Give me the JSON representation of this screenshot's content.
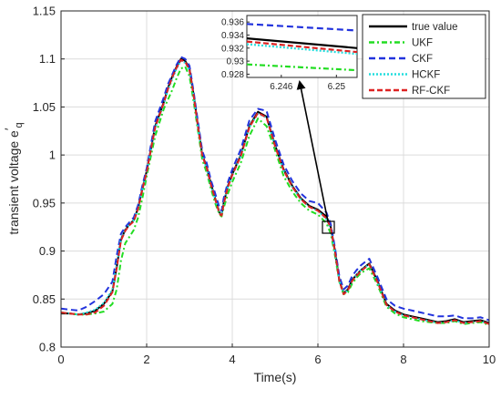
{
  "chart_data": {
    "type": "line",
    "xlabel": "Time(s)",
    "ylabel": "transient voltage e",
    "ylabel_prime": "′",
    "ylabel_sub": "q",
    "xlim": [
      0,
      10
    ],
    "ylim": [
      0.8,
      1.15
    ],
    "x_ticks": [
      "0",
      "2",
      "4",
      "6",
      "8",
      "10"
    ],
    "y_ticks": [
      "0.8",
      "0.85",
      "0.9",
      "0.95",
      "1",
      "1.05",
      "1.1",
      "1.15"
    ],
    "grid": true,
    "legend_position": "top-right",
    "x": [
      0,
      0.2,
      0.4,
      0.6,
      0.8,
      1.0,
      1.2,
      1.3,
      1.4,
      1.5,
      1.6,
      1.7,
      1.8,
      1.9,
      2.0,
      2.2,
      2.4,
      2.5,
      2.6,
      2.7,
      2.8,
      2.9,
      3.0,
      3.1,
      3.2,
      3.3,
      3.4,
      3.5,
      3.6,
      3.7,
      3.75,
      3.8,
      3.9,
      4.0,
      4.2,
      4.4,
      4.6,
      4.8,
      5.0,
      5.2,
      5.4,
      5.6,
      5.8,
      6.0,
      6.2,
      6.3,
      6.4,
      6.5,
      6.6,
      6.7,
      6.8,
      6.9,
      7.0,
      7.2,
      7.4,
      7.6,
      7.8,
      8.0,
      8.2,
      8.4,
      8.6,
      8.8,
      9.0,
      9.2,
      9.4,
      9.6,
      9.8,
      10.0
    ],
    "series": [
      {
        "name": "true value",
        "color": "#000000",
        "dash": "solid",
        "values": [
          0.835,
          0.835,
          0.834,
          0.835,
          0.838,
          0.845,
          0.858,
          0.883,
          0.912,
          0.922,
          0.928,
          0.932,
          0.945,
          0.965,
          0.983,
          1.03,
          1.055,
          1.07,
          1.082,
          1.092,
          1.1,
          1.098,
          1.09,
          1.062,
          1.03,
          1.0,
          0.988,
          0.97,
          0.955,
          0.94,
          0.938,
          0.95,
          0.968,
          0.98,
          1.0,
          1.03,
          1.045,
          1.04,
          1.01,
          0.985,
          0.968,
          0.955,
          0.947,
          0.943,
          0.936,
          0.925,
          0.9,
          0.87,
          0.856,
          0.86,
          0.87,
          0.875,
          0.88,
          0.887,
          0.868,
          0.845,
          0.838,
          0.834,
          0.832,
          0.83,
          0.828,
          0.826,
          0.827,
          0.829,
          0.826,
          0.827,
          0.828,
          0.825
        ]
      },
      {
        "name": "UKF",
        "color": "#22dd22",
        "dash": "6,3,2,3",
        "values": [
          0.836,
          0.835,
          0.834,
          0.834,
          0.835,
          0.837,
          0.845,
          0.86,
          0.89,
          0.908,
          0.915,
          0.922,
          0.935,
          0.955,
          0.978,
          1.02,
          1.048,
          1.058,
          1.068,
          1.08,
          1.09,
          1.092,
          1.082,
          1.055,
          1.025,
          0.995,
          0.982,
          0.965,
          0.95,
          0.938,
          0.936,
          0.945,
          0.96,
          0.972,
          0.992,
          1.02,
          1.038,
          1.03,
          1.005,
          0.978,
          0.962,
          0.95,
          0.942,
          0.938,
          0.929,
          0.918,
          0.895,
          0.868,
          0.855,
          0.857,
          0.866,
          0.872,
          0.877,
          0.882,
          0.864,
          0.842,
          0.835,
          0.831,
          0.829,
          0.827,
          0.826,
          0.825,
          0.825,
          0.827,
          0.824,
          0.825,
          0.826,
          0.823
        ]
      },
      {
        "name": "CKF",
        "color": "#2233dd",
        "dash": "7,4",
        "values": [
          0.84,
          0.839,
          0.838,
          0.842,
          0.848,
          0.855,
          0.868,
          0.895,
          0.918,
          0.925,
          0.93,
          0.935,
          0.948,
          0.968,
          0.986,
          1.035,
          1.06,
          1.074,
          1.084,
          1.094,
          1.102,
          1.1,
          1.093,
          1.065,
          1.034,
          1.004,
          0.992,
          0.974,
          0.96,
          0.945,
          0.942,
          0.955,
          0.972,
          0.985,
          1.006,
          1.036,
          1.048,
          1.046,
          1.016,
          0.99,
          0.973,
          0.96,
          0.952,
          0.95,
          0.94,
          0.928,
          0.903,
          0.874,
          0.86,
          0.864,
          0.874,
          0.88,
          0.885,
          0.892,
          0.872,
          0.85,
          0.843,
          0.84,
          0.838,
          0.836,
          0.834,
          0.832,
          0.832,
          0.833,
          0.83,
          0.83,
          0.831,
          0.828
        ]
      },
      {
        "name": "HCKF",
        "color": "#22dddd",
        "dash": "2,2",
        "values": [
          0.836,
          0.835,
          0.834,
          0.836,
          0.839,
          0.846,
          0.86,
          0.886,
          0.913,
          0.922,
          0.928,
          0.932,
          0.944,
          0.964,
          0.982,
          1.028,
          1.053,
          1.068,
          1.079,
          1.09,
          1.098,
          1.096,
          1.088,
          1.06,
          1.029,
          0.999,
          0.986,
          0.968,
          0.954,
          0.94,
          0.938,
          0.95,
          0.967,
          0.979,
          0.999,
          1.029,
          1.043,
          1.039,
          1.009,
          0.984,
          0.967,
          0.954,
          0.946,
          0.942,
          0.933,
          0.923,
          0.898,
          0.869,
          0.856,
          0.859,
          0.869,
          0.875,
          0.88,
          0.886,
          0.867,
          0.844,
          0.837,
          0.833,
          0.831,
          0.829,
          0.827,
          0.825,
          0.826,
          0.828,
          0.825,
          0.826,
          0.827,
          0.824
        ]
      },
      {
        "name": "RF-CKF",
        "color": "#dd2222",
        "dash": "6,3",
        "values": [
          0.836,
          0.835,
          0.834,
          0.834,
          0.836,
          0.843,
          0.857,
          0.882,
          0.911,
          0.921,
          0.927,
          0.931,
          0.944,
          0.964,
          0.982,
          1.029,
          1.054,
          1.069,
          1.081,
          1.091,
          1.099,
          1.097,
          1.089,
          1.061,
          1.029,
          0.999,
          0.987,
          0.969,
          0.954,
          0.939,
          0.937,
          0.949,
          0.967,
          0.979,
          0.999,
          1.029,
          1.044,
          1.039,
          1.009,
          0.984,
          0.967,
          0.954,
          0.946,
          0.942,
          0.934,
          0.924,
          0.899,
          0.869,
          0.855,
          0.859,
          0.869,
          0.874,
          0.879,
          0.886,
          0.867,
          0.844,
          0.837,
          0.833,
          0.831,
          0.829,
          0.827,
          0.825,
          0.826,
          0.828,
          0.825,
          0.826,
          0.827,
          0.824
        ]
      }
    ],
    "inset": {
      "xlim": [
        6.2435,
        6.2515
      ],
      "ylim": [
        0.9275,
        0.937
      ],
      "x_ticks": [
        "6.246",
        "6.25"
      ],
      "y_ticks": [
        "0.936",
        "0.934",
        "0.932",
        "0.93",
        "0.928"
      ],
      "x": [
        6.2435,
        6.2515
      ],
      "series": [
        {
          "name": "true value",
          "values": [
            0.9335,
            0.932
          ]
        },
        {
          "name": "UKF",
          "values": [
            0.9295,
            0.9286
          ]
        },
        {
          "name": "CKF",
          "values": [
            0.9357,
            0.9347
          ]
        },
        {
          "name": "HCKF",
          "values": [
            0.9326,
            0.9311
          ]
        },
        {
          "name": "RF-CKF",
          "values": [
            0.933,
            0.9314
          ]
        }
      ]
    }
  }
}
